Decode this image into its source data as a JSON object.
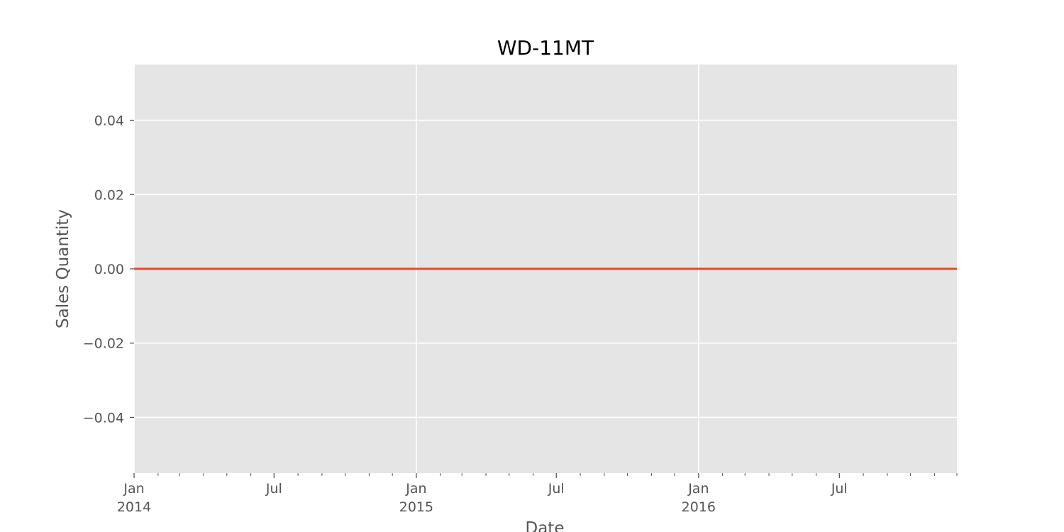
{
  "chart_data": {
    "type": "line",
    "title": "WD-11MT",
    "xlabel": "Date",
    "ylabel": "Sales Quantity",
    "xlim": [
      "2014-01-01",
      "2016-11-30"
    ],
    "ylim": [
      -0.055,
      0.055
    ],
    "grid": true,
    "x_major_ticks": [
      {
        "date": "2014-01-01",
        "label": "Jan",
        "year": "2014"
      },
      {
        "date": "2014-07-01",
        "label": "Jul",
        "year": ""
      },
      {
        "date": "2015-01-01",
        "label": "Jan",
        "year": "2015"
      },
      {
        "date": "2015-07-01",
        "label": "Jul",
        "year": ""
      },
      {
        "date": "2016-01-01",
        "label": "Jan",
        "year": "2016"
      },
      {
        "date": "2016-07-01",
        "label": "Jul",
        "year": ""
      }
    ],
    "y_ticks": [
      {
        "value": 0.04,
        "label": "0.04"
      },
      {
        "value": 0.02,
        "label": "0.02"
      },
      {
        "value": 0.0,
        "label": "0.00"
      },
      {
        "value": -0.02,
        "label": "−0.02"
      },
      {
        "value": -0.04,
        "label": "−0.04"
      }
    ],
    "series": [
      {
        "color": "#e24a33",
        "x": [
          "2014-01-01",
          "2016-11-30"
        ],
        "values": [
          0,
          0
        ]
      }
    ]
  }
}
